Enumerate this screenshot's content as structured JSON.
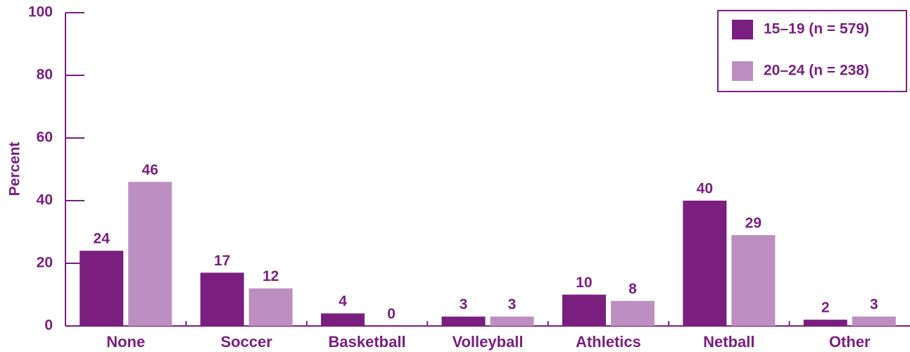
{
  "chart_data": {
    "type": "bar",
    "ylabel": "Percent",
    "categories": [
      "None",
      "Soccer",
      "Basketball",
      "Volleyball",
      "Athletics",
      "Netball",
      "Other"
    ],
    "series": [
      {
        "name": "15–19 (n = 579)",
        "color": "#7a1f7f",
        "values": [
          24,
          17,
          4,
          3,
          10,
          40,
          2
        ]
      },
      {
        "name": "20–24 (n = 238)",
        "color": "#bc8fc0",
        "values": [
          46,
          12,
          0,
          3,
          8,
          29,
          3
        ]
      }
    ],
    "ylim": [
      0,
      100
    ],
    "yticks": [
      0,
      20,
      40,
      60,
      80,
      100
    ],
    "legend": "upper right"
  }
}
